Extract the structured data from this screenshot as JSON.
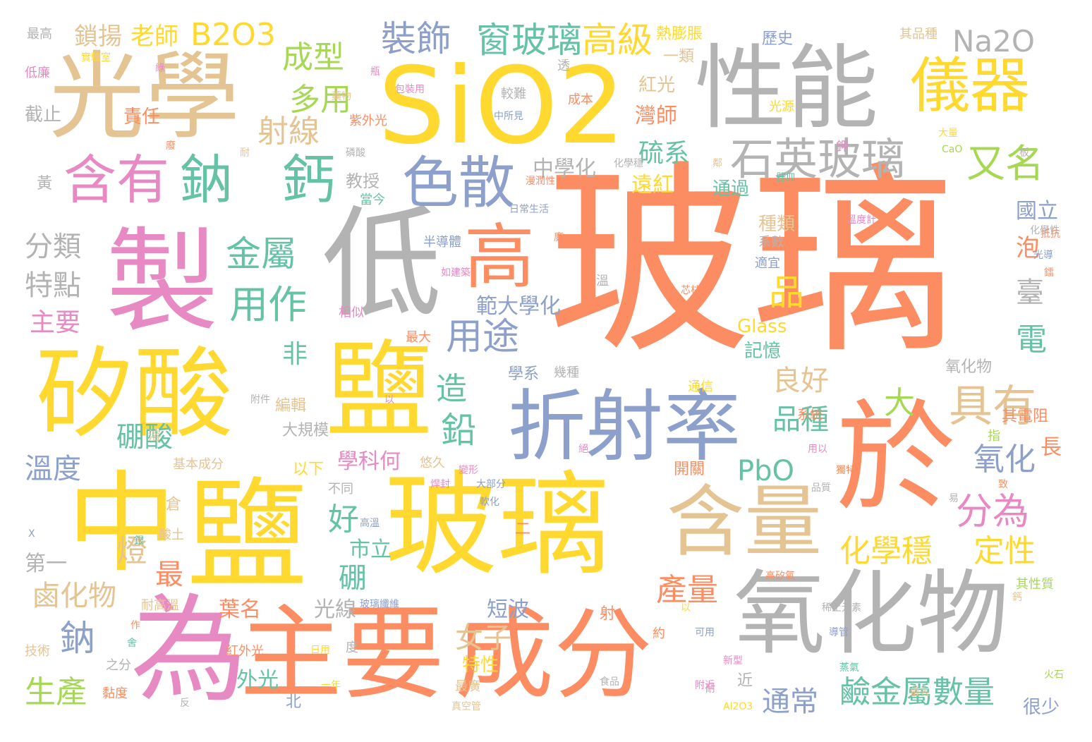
{
  "palette": {
    "orange": "#fc8d62",
    "yellow": "#ffd92f",
    "gray": "#b3b3b3",
    "tan": "#e5c494",
    "pink": "#e78ac3",
    "green": "#66c2a5",
    "blue": "#8da0cb",
    "lime": "#a6d854"
  },
  "words": [
    {
      "text": "玻璃",
      "color": "orange"
    },
    {
      "text": "SiO2",
      "color": "yellow"
    },
    {
      "text": "光學",
      "color": "tan"
    },
    {
      "text": "性能",
      "color": "gray"
    },
    {
      "text": "製",
      "color": "pink"
    },
    {
      "text": "低",
      "color": "gray"
    },
    {
      "text": "矽酸",
      "color": "yellow"
    },
    {
      "text": "鹽",
      "color": "yellow"
    },
    {
      "text": "中",
      "color": "yellow"
    },
    {
      "text": "鹽",
      "color": "yellow"
    },
    {
      "text": "玻璃",
      "color": "yellow"
    },
    {
      "text": "為",
      "color": "pink"
    },
    {
      "text": "主要",
      "color": "orange"
    },
    {
      "text": "成分",
      "color": "orange"
    },
    {
      "text": "氧化物",
      "color": "gray"
    },
    {
      "text": "於",
      "color": "orange"
    },
    {
      "text": "折射率",
      "color": "blue"
    },
    {
      "text": "含量",
      "color": "tan"
    },
    {
      "text": "儀器",
      "color": "yellow"
    },
    {
      "text": "高",
      "color": "orange"
    },
    {
      "text": "含有",
      "color": "pink"
    },
    {
      "text": "鈉",
      "color": "green"
    },
    {
      "text": "鈣",
      "color": "green"
    },
    {
      "text": "色散",
      "color": "blue"
    },
    {
      "text": "石英玻璃",
      "color": "gray"
    },
    {
      "text": "具有",
      "color": "tan"
    },
    {
      "text": "又名",
      "color": "lime"
    },
    {
      "text": "裝飾",
      "color": "blue"
    },
    {
      "text": "窗玻璃",
      "color": "green"
    },
    {
      "text": "高級",
      "color": "yellow"
    },
    {
      "text": "Na2O",
      "color": "gray"
    },
    {
      "text": "B2O3",
      "color": "yellow"
    },
    {
      "text": "鎖揚",
      "color": "tan"
    },
    {
      "text": "老師",
      "color": "yellow"
    },
    {
      "text": "成型",
      "color": "lime"
    },
    {
      "text": "多用",
      "color": "lime"
    },
    {
      "text": "射線",
      "color": "tan"
    },
    {
      "text": "金屬",
      "color": "green"
    },
    {
      "text": "用作",
      "color": "green"
    },
    {
      "text": "品",
      "color": "yellow"
    },
    {
      "text": "用途",
      "color": "blue"
    },
    {
      "text": "分為",
      "color": "pink"
    },
    {
      "text": "化學穩",
      "color": "yellow"
    },
    {
      "text": "定性",
      "color": "yellow"
    },
    {
      "text": "鹼金屬數量",
      "color": "green"
    },
    {
      "text": "通常",
      "color": "blue"
    },
    {
      "text": "鉛",
      "color": "green"
    },
    {
      "text": "大",
      "color": "lime"
    },
    {
      "text": "品種",
      "color": "green"
    },
    {
      "text": "良好",
      "color": "tan"
    },
    {
      "text": "PbO",
      "color": "green"
    },
    {
      "text": "氧化",
      "color": "blue"
    },
    {
      "text": "電",
      "color": "green"
    },
    {
      "text": "臺",
      "color": "gray"
    },
    {
      "text": "泡",
      "color": "orange"
    },
    {
      "text": "國立",
      "color": "blue"
    },
    {
      "text": "硫系",
      "color": "green"
    },
    {
      "text": "灣師",
      "color": "orange"
    },
    {
      "text": "遠紅",
      "color": "yellow"
    },
    {
      "text": "中學化",
      "color": "gray"
    },
    {
      "text": "教授",
      "color": "gray"
    },
    {
      "text": "分類",
      "color": "gray"
    },
    {
      "text": "特點",
      "color": "gray"
    },
    {
      "text": "主要",
      "color": "pink"
    },
    {
      "text": "溫度",
      "color": "blue"
    },
    {
      "text": "硼酸",
      "color": "green"
    },
    {
      "text": "鹵化物",
      "color": "tan"
    },
    {
      "text": "燈",
      "color": "tan"
    },
    {
      "text": "最",
      "color": "orange"
    },
    {
      "text": "鈉",
      "color": "blue"
    },
    {
      "text": "生產",
      "color": "lime"
    },
    {
      "text": "外光",
      "color": "green"
    },
    {
      "text": "產量",
      "color": "orange"
    },
    {
      "text": "葉名",
      "color": "orange"
    },
    {
      "text": "短波",
      "color": "blue"
    },
    {
      "text": "女子",
      "color": "tan"
    },
    {
      "text": "特性",
      "color": "yellow"
    },
    {
      "text": "光線",
      "color": "gray"
    },
    {
      "text": "學科何",
      "color": "pink"
    },
    {
      "text": "市立",
      "color": "green"
    },
    {
      "text": "硼",
      "color": "green"
    },
    {
      "text": "好",
      "color": "green"
    },
    {
      "text": "造",
      "color": "green"
    },
    {
      "text": "非",
      "color": "green"
    },
    {
      "text": "範大學化",
      "color": "blue"
    },
    {
      "text": "學系",
      "color": "blue"
    },
    {
      "text": "Glass",
      "color": "yellow"
    },
    {
      "text": "記憶",
      "color": "green"
    },
    {
      "text": "種類",
      "color": "tan"
    },
    {
      "text": "氧化物",
      "color": "gray"
    },
    {
      "text": "通過",
      "color": "green"
    },
    {
      "text": "其電阻",
      "color": "orange"
    },
    {
      "text": "長",
      "color": "orange"
    },
    {
      "text": "很少",
      "color": "blue"
    },
    {
      "text": "紅光",
      "color": "tan"
    },
    {
      "text": "一類",
      "color": "tan"
    },
    {
      "text": "歷史",
      "color": "blue"
    },
    {
      "text": "熱膨脹",
      "color": "yellow"
    },
    {
      "text": "責任",
      "color": "orange"
    },
    {
      "text": "紫外光",
      "color": "orange"
    },
    {
      "text": "截止",
      "color": "gray"
    },
    {
      "text": "最高",
      "color": "gray"
    },
    {
      "text": "低廉",
      "color": "pink"
    },
    {
      "text": "黃",
      "color": "gray"
    },
    {
      "text": "光源",
      "color": "yellow"
    },
    {
      "text": "其品種",
      "color": "tan"
    },
    {
      "text": "成本",
      "color": "orange"
    },
    {
      "text": "較難",
      "color": "gray"
    },
    {
      "text": "中所見",
      "color": "blue"
    },
    {
      "text": "半導體",
      "color": "blue"
    },
    {
      "text": "日常生活",
      "color": "blue"
    },
    {
      "text": "當今",
      "color": "green"
    },
    {
      "text": "相似",
      "color": "pink"
    },
    {
      "text": "最大",
      "color": "orange"
    },
    {
      "text": "幾種",
      "color": "gray"
    },
    {
      "text": "系數",
      "color": "gray"
    },
    {
      "text": "適宜",
      "color": "blue"
    },
    {
      "text": "通信",
      "color": "yellow"
    },
    {
      "text": "系統",
      "color": "orange"
    },
    {
      "text": "指",
      "color": "lime"
    },
    {
      "text": "開關",
      "color": "orange"
    },
    {
      "text": "基本成分",
      "color": "tan"
    },
    {
      "text": "以下",
      "color": "yellow"
    },
    {
      "text": "悠久",
      "color": "tan"
    },
    {
      "text": "大部分",
      "color": "blue"
    },
    {
      "text": "不同",
      "color": "gray"
    },
    {
      "text": "第一",
      "color": "gray"
    },
    {
      "text": "倉",
      "color": "tan"
    },
    {
      "text": "酸土",
      "color": "tan"
    },
    {
      "text": "編輯",
      "color": "tan"
    },
    {
      "text": "大規模",
      "color": "gray"
    },
    {
      "text": "耐高溫",
      "color": "tan"
    },
    {
      "text": "紅外光",
      "color": "orange"
    },
    {
      "text": "日用",
      "color": "yellow"
    },
    {
      "text": "之分",
      "color": "gray"
    },
    {
      "text": "技術",
      "color": "tan"
    },
    {
      "text": "黏度",
      "color": "orange"
    },
    {
      "text": "最廣",
      "color": "tan"
    },
    {
      "text": "真空管",
      "color": "tan"
    },
    {
      "text": "北",
      "color": "blue"
    },
    {
      "text": "近",
      "color": "gray"
    },
    {
      "text": "度",
      "color": "gray"
    },
    {
      "text": "約",
      "color": "orange"
    },
    {
      "text": "可用",
      "color": "blue"
    },
    {
      "text": "射",
      "color": "orange"
    },
    {
      "text": "高矽氧",
      "color": "orange"
    },
    {
      "text": "其性質",
      "color": "lime"
    },
    {
      "text": "CaO",
      "color": "lime"
    },
    {
      "text": "Al2O3",
      "color": "yellow"
    },
    {
      "text": "光導",
      "color": "blue"
    },
    {
      "text": "鐳",
      "color": "orange"
    },
    {
      "text": "溫",
      "color": "gray"
    },
    {
      "text": "廣",
      "color": "orange"
    },
    {
      "text": "一年",
      "color": "yellow"
    },
    {
      "text": "二",
      "color": "orange"
    },
    {
      "text": "易",
      "color": "gray"
    },
    {
      "text": "品質",
      "color": "gray"
    },
    {
      "text": "溶",
      "color": "tan"
    },
    {
      "text": "食品",
      "color": "gray"
    },
    {
      "text": "瓶",
      "color": "pink"
    },
    {
      "text": "透",
      "color": "gray"
    },
    {
      "text": "包裝用",
      "color": "pink"
    },
    {
      "text": "大量",
      "color": "yellow"
    },
    {
      "text": "化學性",
      "color": "gray"
    },
    {
      "text": "火石",
      "color": "lime"
    },
    {
      "text": "芯柱",
      "color": "orange"
    },
    {
      "text": "用以",
      "color": "pink"
    },
    {
      "text": "獨特",
      "color": "orange"
    },
    {
      "text": "鄰",
      "color": "tan"
    },
    {
      "text": "絕",
      "color": "pink"
    },
    {
      "text": "軟化",
      "color": "blue"
    },
    {
      "text": "玻璃纖維",
      "color": "blue"
    },
    {
      "text": "以",
      "color": "yellow"
    },
    {
      "text": "變形",
      "color": "pink"
    },
    {
      "text": "作",
      "color": "orange"
    },
    {
      "text": "焊封",
      "color": "pink"
    },
    {
      "text": "高溫",
      "color": "blue"
    },
    {
      "text": "磷酸",
      "color": "gray"
    },
    {
      "text": "儀表",
      "color": "tan"
    },
    {
      "text": "附近",
      "color": "pink"
    },
    {
      "text": "如建築",
      "color": "pink"
    },
    {
      "text": "器皿",
      "color": "green"
    },
    {
      "text": "鉀",
      "color": "pink"
    },
    {
      "text": "以",
      "color": "pink"
    },
    {
      "text": "耐",
      "color": "pink"
    },
    {
      "text": "反",
      "color": "gray"
    },
    {
      "text": "鈣",
      "color": "tan"
    },
    {
      "text": "稀土元素",
      "color": "gray"
    },
    {
      "text": "導管",
      "color": "blue"
    },
    {
      "text": "板",
      "color": "gray"
    },
    {
      "text": "附件",
      "color": "gray"
    },
    {
      "text": "漫潤性",
      "color": "orange"
    },
    {
      "text": "藥物",
      "color": "tan"
    },
    {
      "text": "實驗室",
      "color": "yellow"
    },
    {
      "text": "廢",
      "color": "orange"
    },
    {
      "text": "綠",
      "color": "pink"
    },
    {
      "text": "耐",
      "color": "tan"
    },
    {
      "text": "溫度計",
      "color": "pink"
    },
    {
      "text": "抵抗",
      "color": "orange"
    },
    {
      "text": "化學穩",
      "color": "gray"
    },
    {
      "text": "新型",
      "color": "pink"
    },
    {
      "text": "銀",
      "color": "green"
    },
    {
      "text": "致",
      "color": "orange"
    },
    {
      "text": "X",
      "color": "blue"
    },
    {
      "text": "舍",
      "color": "green"
    },
    {
      "text": "蒸氣",
      "color": "green"
    },
    {
      "text": "紐",
      "color": "orange"
    }
  ]
}
